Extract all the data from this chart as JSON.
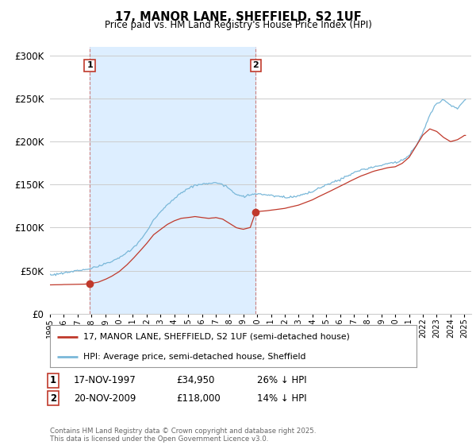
{
  "title": "17, MANOR LANE, SHEFFIELD, S2 1UF",
  "subtitle": "Price paid vs. HM Land Registry's House Price Index (HPI)",
  "ylim": [
    0,
    310000
  ],
  "yticks": [
    0,
    50000,
    100000,
    150000,
    200000,
    250000,
    300000
  ],
  "ytick_labels": [
    "£0",
    "£50K",
    "£100K",
    "£150K",
    "£200K",
    "£250K",
    "£300K"
  ],
  "hpi_color": "#7ab8d9",
  "price_color": "#c0392b",
  "marker_color": "#c0392b",
  "vline_color": "#c0392b",
  "shade_color": "#ddeeff",
  "background_color": "#ffffff",
  "grid_color": "#cccccc",
  "legend_label_price": "17, MANOR LANE, SHEFFIELD, S2 1UF (semi-detached house)",
  "legend_label_hpi": "HPI: Average price, semi-detached house, Sheffield",
  "annotation1_date": "17-NOV-1997",
  "annotation1_price": "£34,950",
  "annotation1_pct": "26% ↓ HPI",
  "annotation2_date": "20-NOV-2009",
  "annotation2_price": "£118,000",
  "annotation2_pct": "14% ↓ HPI",
  "footnote": "Contains HM Land Registry data © Crown copyright and database right 2025.\nThis data is licensed under the Open Government Licence v3.0.",
  "purchase1_year": 1997.88,
  "purchase1_price": 34950,
  "purchase2_year": 2009.89,
  "purchase2_price": 118000,
  "xmin": 1995.0,
  "xmax": 2025.5
}
